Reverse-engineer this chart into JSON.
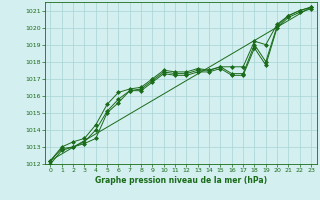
{
  "xlabel": "Graphe pression niveau de la mer (hPa)",
  "background_color": "#d4efef",
  "grid_color": "#a8d4d4",
  "line_color": "#1a6b1a",
  "ylim": [
    1012,
    1021.5
  ],
  "xlim": [
    -0.5,
    23.5
  ],
  "yticks": [
    1012,
    1013,
    1014,
    1015,
    1016,
    1017,
    1018,
    1019,
    1020,
    1021
  ],
  "xticks": [
    0,
    1,
    2,
    3,
    4,
    5,
    6,
    7,
    8,
    9,
    10,
    11,
    12,
    13,
    14,
    15,
    16,
    17,
    18,
    19,
    20,
    21,
    22,
    23
  ],
  "series_main": {
    "x": [
      0,
      1,
      2,
      3,
      4,
      5,
      6,
      7,
      8,
      9,
      10,
      11,
      12,
      13,
      14,
      15,
      16,
      17,
      18,
      19,
      20,
      21,
      22,
      23
    ],
    "y": [
      1012.2,
      1012.9,
      1013.0,
      1013.3,
      1014.0,
      1015.1,
      1015.8,
      1016.3,
      1016.4,
      1016.9,
      1017.4,
      1017.3,
      1017.3,
      1017.5,
      1017.5,
      1017.7,
      1017.3,
      1017.3,
      1019.0,
      1018.0,
      1020.1,
      1020.7,
      1021.0,
      1021.2
    ]
  },
  "series_upper": {
    "x": [
      0,
      1,
      2,
      3,
      4,
      5,
      6,
      7,
      8,
      9,
      10,
      11,
      12,
      13,
      14,
      15,
      16,
      17,
      18,
      19,
      20,
      21,
      22,
      23
    ],
    "y": [
      1012.2,
      1013.0,
      1013.3,
      1013.5,
      1014.3,
      1015.5,
      1016.2,
      1016.4,
      1016.5,
      1017.0,
      1017.5,
      1017.4,
      1017.4,
      1017.6,
      1017.5,
      1017.7,
      1017.7,
      1017.7,
      1019.2,
      1019.0,
      1020.2,
      1020.7,
      1021.0,
      1021.2
    ]
  },
  "series_lower": {
    "x": [
      0,
      1,
      2,
      3,
      4,
      5,
      6,
      7,
      8,
      9,
      10,
      11,
      12,
      13,
      14,
      15,
      16,
      17,
      18,
      19,
      20,
      21,
      22,
      23
    ],
    "y": [
      1012.0,
      1012.8,
      1013.0,
      1013.2,
      1013.5,
      1015.0,
      1015.6,
      1016.3,
      1016.3,
      1016.8,
      1017.3,
      1017.2,
      1017.2,
      1017.4,
      1017.4,
      1017.6,
      1017.2,
      1017.2,
      1018.8,
      1017.8,
      1020.0,
      1020.6,
      1020.9,
      1021.1
    ]
  },
  "series_ref": {
    "x": [
      0,
      23
    ],
    "y": [
      1012.2,
      1021.2
    ]
  }
}
